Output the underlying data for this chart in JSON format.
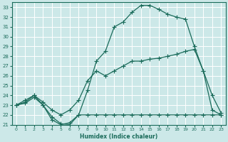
{
  "xlabel": "Humidex (Indice chaleur)",
  "bg_color": "#cce8e8",
  "grid_color": "#ffffff",
  "line_color": "#1a6b5a",
  "xlim": [
    -0.5,
    23.5
  ],
  "ylim": [
    21,
    33.5
  ],
  "yticks": [
    21,
    22,
    23,
    24,
    25,
    26,
    27,
    28,
    29,
    30,
    31,
    32,
    33
  ],
  "xticks": [
    0,
    1,
    2,
    3,
    4,
    5,
    6,
    7,
    8,
    9,
    10,
    11,
    12,
    13,
    14,
    15,
    16,
    17,
    18,
    19,
    20,
    21,
    22,
    23
  ],
  "line1_x": [
    0,
    1,
    2,
    3,
    4,
    5,
    6,
    7,
    8,
    9,
    10,
    11,
    12,
    13,
    14,
    15,
    16,
    17,
    18,
    19,
    20,
    21,
    22,
    23
  ],
  "line1_y": [
    23.0,
    23.5,
    24.0,
    23.0,
    21.5,
    21.0,
    21.2,
    22.0,
    24.5,
    27.5,
    28.5,
    31.0,
    31.5,
    32.5,
    33.2,
    33.2,
    32.8,
    32.3,
    32.0,
    31.8,
    29.0,
    26.5,
    22.5,
    22.0
  ],
  "line2_x": [
    0,
    1,
    2,
    3,
    4,
    5,
    6,
    7,
    8,
    9,
    10,
    11,
    12,
    13,
    14,
    15,
    16,
    17,
    18,
    19,
    20,
    21,
    22,
    23
  ],
  "line2_y": [
    23.0,
    23.2,
    23.8,
    23.0,
    21.8,
    21.1,
    21.0,
    22.0,
    22.0,
    22.0,
    22.0,
    22.0,
    22.0,
    22.0,
    22.0,
    22.0,
    22.0,
    22.0,
    22.0,
    22.0,
    22.0,
    22.0,
    22.0,
    22.0
  ],
  "line3_x": [
    0,
    1,
    2,
    3,
    4,
    5,
    6,
    7,
    8,
    9,
    10,
    11,
    12,
    13,
    14,
    15,
    16,
    17,
    18,
    19,
    20,
    21,
    22,
    23
  ],
  "line3_y": [
    23.0,
    23.3,
    24.0,
    23.3,
    22.5,
    22.0,
    22.5,
    23.5,
    25.5,
    26.5,
    26.0,
    26.5,
    27.0,
    27.5,
    27.5,
    27.7,
    27.8,
    28.0,
    28.2,
    28.5,
    28.7,
    26.5,
    24.0,
    22.2
  ]
}
